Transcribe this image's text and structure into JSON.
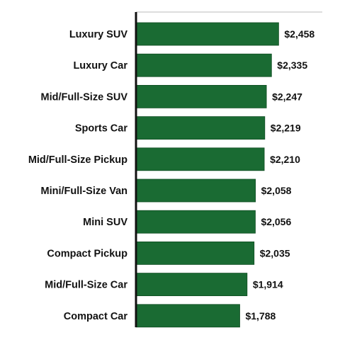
{
  "chart_data": {
    "type": "bar",
    "orientation": "horizontal",
    "categories": [
      "Luxury SUV",
      "Luxury Car",
      "Mid/Full-Size SUV",
      "Sports Car",
      "Mid/Full-Size Pickup",
      "Mini/Full-Size Van",
      "Mini SUV",
      "Compact Pickup",
      "Mid/Full-Size Car",
      "Compact Car"
    ],
    "values": [
      2458,
      2335,
      2247,
      2219,
      2210,
      2058,
      2056,
      2035,
      1914,
      1788
    ],
    "value_labels": [
      "$2,458",
      "$2,335",
      "$2,247",
      "$2,219",
      "$2,210",
      "$2,058",
      "$2,056",
      "$2,035",
      "$1,914",
      "$1,788"
    ],
    "title": "",
    "xlabel": "",
    "ylabel": "",
    "xlim": [
      0,
      3210
    ],
    "grid": false,
    "legend": "none",
    "colors": {
      "bar": "#1a6b33",
      "bar_edge": "#0f4d22",
      "axis": "#111111",
      "top_line": "#bbbbbb"
    }
  }
}
